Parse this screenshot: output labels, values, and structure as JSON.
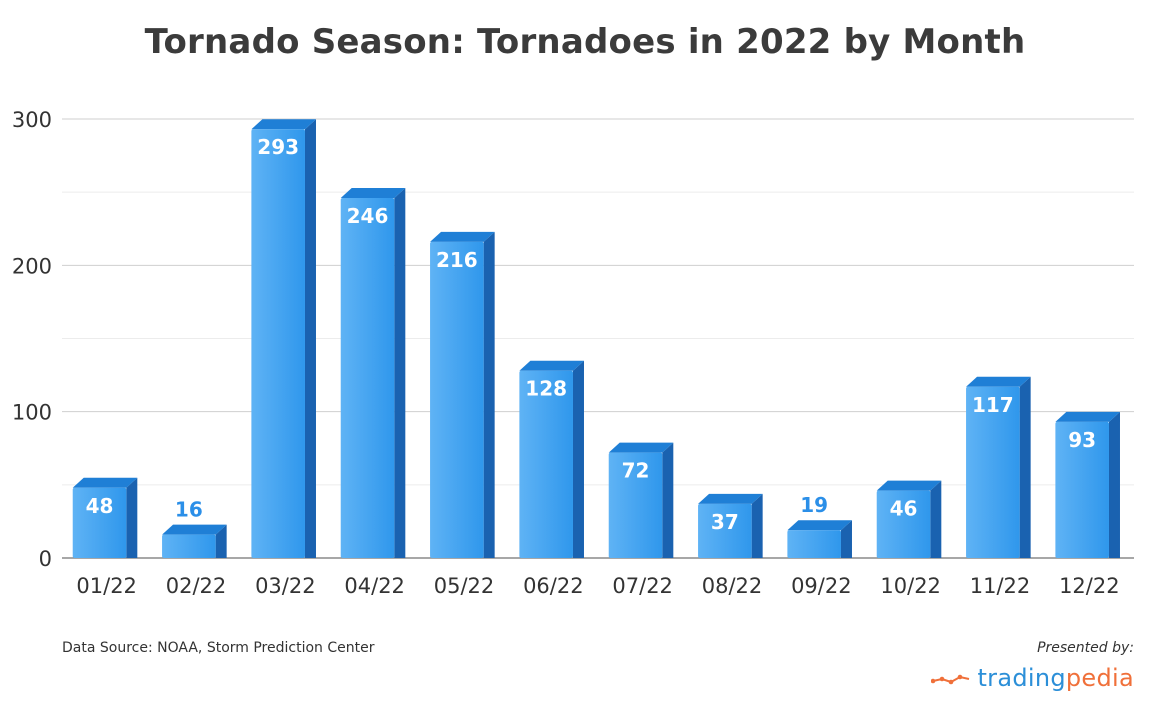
{
  "chart_data": {
    "type": "bar",
    "title": "Tornado Season: Tornadoes in 2022 by Month",
    "categories": [
      "01/22",
      "02/22",
      "03/22",
      "04/22",
      "05/22",
      "06/22",
      "07/22",
      "08/22",
      "09/22",
      "10/22",
      "11/22",
      "12/22"
    ],
    "values": [
      48,
      16,
      293,
      246,
      216,
      128,
      72,
      37,
      19,
      46,
      117,
      93
    ],
    "y_ticks": [
      0,
      100,
      200,
      300
    ],
    "ylim": [
      0,
      300
    ],
    "xlabel": "",
    "ylabel": "",
    "grid": true,
    "legend": "none",
    "colors": {
      "bar_front": "#2f97ec",
      "bar_front_light": "#5fb3f5",
      "bar_top": "#1f7fd6",
      "bar_side": "#1a62b0",
      "grid": "#cfcfcf",
      "grid_minor": "#ececec",
      "value_outside": "#2b8fe8"
    }
  },
  "footer": {
    "source": "Data Source: NOAA, Storm Prediction Center",
    "presented_by": "Presented by:",
    "brand_part1": "trading",
    "brand_part2": "pedia"
  }
}
